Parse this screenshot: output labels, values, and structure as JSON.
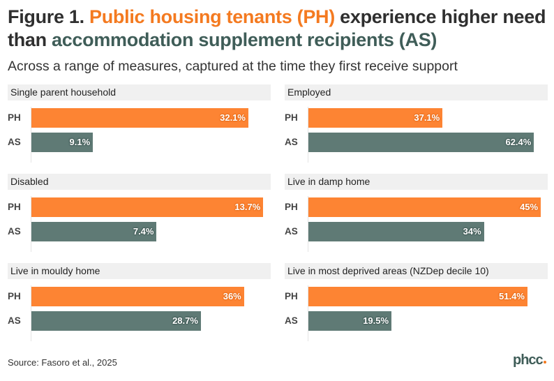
{
  "title": {
    "prefix": "Figure 1. ",
    "ph_phrase": "Public housing tenants (PH)",
    "middle": " experience higher need than ",
    "as_phrase": "accommodation supplement recipients (AS)"
  },
  "subtitle": "Across a range of measures, captured at the time they first receive support",
  "source": "Source: Fasoro et al., 2025",
  "logo_text": "phcc",
  "colors": {
    "PH": "#fd8433",
    "AS": "#5f7a75",
    "strip": "#f0f0f0"
  },
  "chart_data": {
    "type": "bar",
    "orientation": "horizontal",
    "facets": "small multiples, 3 rows x 2 columns, independent x scales",
    "categories": [
      "PH",
      "AS"
    ],
    "panels": [
      {
        "title": "Single parent household",
        "values": [
          32.1,
          9.1
        ],
        "labels": [
          "32.1%",
          "9.1%"
        ],
        "xlim": [
          0,
          35.3
        ]
      },
      {
        "title": "Employed",
        "values": [
          37.1,
          62.4
        ],
        "labels": [
          "37.1%",
          "62.4%"
        ],
        "xlim": [
          0,
          66
        ]
      },
      {
        "title": "Disabled",
        "values": [
          13.7,
          7.4
        ],
        "labels": [
          "13.7%",
          "7.4%"
        ],
        "xlim": [
          0,
          14.1
        ]
      },
      {
        "title": "Live in damp home",
        "values": [
          45,
          34
        ],
        "labels": [
          "45%",
          "34%"
        ],
        "xlim": [
          0,
          46.2
        ]
      },
      {
        "title": "Live in mouldy home",
        "values": [
          36,
          28.7
        ],
        "labels": [
          "36%",
          "28.7%"
        ],
        "xlim": [
          0,
          40.4
        ]
      },
      {
        "title": "Live in most deprived areas (NZDep decile 10)",
        "values": [
          51.4,
          19.5
        ],
        "labels": [
          "51.4%",
          "19.5%"
        ],
        "xlim": [
          0,
          56
        ]
      }
    ],
    "grid": false,
    "legend": "none"
  }
}
